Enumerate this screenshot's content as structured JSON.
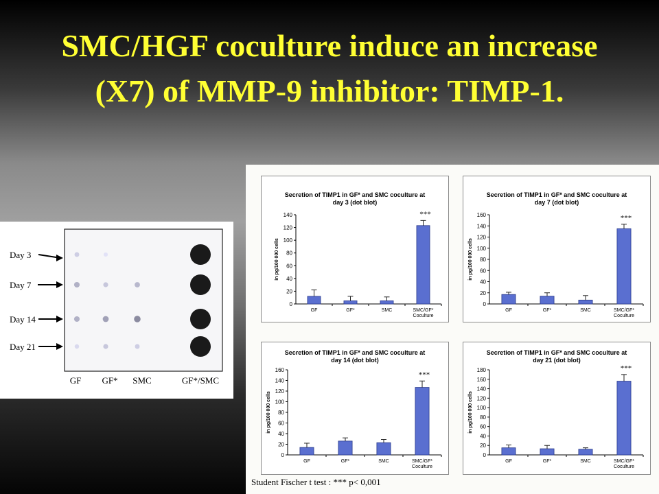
{
  "slide": {
    "title_line1": "SMC/HGF coculture induce an increase",
    "title_line2": "(X7) of MMP-9 inhibitor: TIMP-1."
  },
  "blot": {
    "rows": [
      "Day 3",
      "Day 7",
      "Day 14",
      "Day 21"
    ],
    "columns": [
      "GF",
      "GF*",
      "SMC",
      "GF*/SMC"
    ],
    "intensities": [
      [
        0.15,
        0.02,
        0.0,
        1.0
      ],
      [
        0.35,
        0.2,
        0.3,
        1.0
      ],
      [
        0.35,
        0.45,
        0.6,
        1.0
      ],
      [
        0.08,
        0.2,
        0.15,
        1.0
      ]
    ]
  },
  "footnote": "Student Fischer t test : *** p< 0,001",
  "colors": {
    "title": "#ffff33",
    "bar": "#5a6fd0"
  },
  "chart_data": [
    {
      "type": "bar",
      "title_line1": "Secretion of TIMP1  in GF* and SMC coculture at",
      "title_line2": "day 3 (dot blot)",
      "ylabel": "in pg/100 000 cells",
      "categories": [
        "GF",
        "GF*",
        "SMC",
        "SMC/GF*"
      ],
      "category_sublabel": "Coculture",
      "values": [
        12,
        5,
        5,
        123
      ],
      "errors": [
        10,
        7,
        6,
        8
      ],
      "ylim": [
        0,
        140
      ],
      "yticks": [
        "0",
        "20",
        "40",
        "60",
        "80",
        "100",
        "120",
        "140"
      ],
      "significance": "***"
    },
    {
      "type": "bar",
      "title_line1": "Secretion of TIMP1  in GF* and SMC coculture at",
      "title_line2": "day 7 (dot blot)",
      "ylabel": "in pg/100 000 cells",
      "categories": [
        "GF",
        "GF*",
        "SMC",
        "SMC/GF*"
      ],
      "category_sublabel": "Coculture",
      "values": [
        17,
        14,
        7,
        135
      ],
      "errors": [
        4,
        6,
        8,
        8
      ],
      "ylim": [
        0,
        160
      ],
      "yticks": [
        "0",
        "20",
        "40",
        "60",
        "80",
        "100",
        "120",
        "140",
        "160"
      ],
      "significance": "***"
    },
    {
      "type": "bar",
      "title_line1": "Secretion of TIMP1  in GF* and SMC coculture at",
      "title_line2": "day 14 (dot blot)",
      "ylabel": "in pg/100 000 cells",
      "categories": [
        "GF",
        "GF*",
        "SMC",
        "SMC/GF*"
      ],
      "category_sublabel": "Coculture",
      "values": [
        14,
        26,
        23,
        127
      ],
      "errors": [
        8,
        6,
        6,
        12
      ],
      "ylim": [
        0,
        160
      ],
      "yticks": [
        "0",
        "20",
        "40",
        "60",
        "80",
        "100",
        "120",
        "140",
        "160"
      ],
      "significance": "***"
    },
    {
      "type": "bar",
      "title_line1": "Secretion of TIMP1  in GF* and SMC coculture at",
      "title_line2": "day 21 (dot blot)",
      "ylabel": "in pg/100 000 cells",
      "categories": [
        "GF",
        "GF*",
        "SMC",
        "SMC/GF*"
      ],
      "category_sublabel": "Coculture",
      "values": [
        15,
        13,
        12,
        156
      ],
      "errors": [
        6,
        7,
        3,
        14
      ],
      "ylim": [
        0,
        180
      ],
      "yticks": [
        "0",
        "20",
        "40",
        "60",
        "80",
        "100",
        "120",
        "140",
        "160",
        "180"
      ],
      "significance": "***"
    }
  ]
}
